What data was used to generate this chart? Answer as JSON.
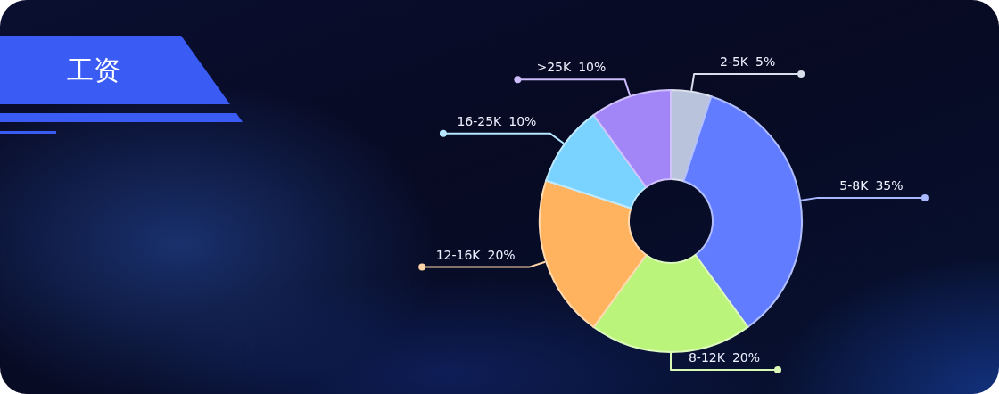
{
  "chart_data": {
    "type": "donut",
    "title": "工资",
    "categories": [
      "2-5K",
      "5-8K",
      "8-12K",
      "12-16K",
      "16-25K",
      ">25K"
    ],
    "values": [
      5,
      35,
      20,
      20,
      10,
      10
    ],
    "colors": [
      "#b9c3dc",
      "#617cfe",
      "#bbf47a",
      "#ffb35f",
      "#7ad3ff",
      "#a286f7"
    ],
    "value_labels": [
      "5%",
      "35%",
      "20%",
      "20%",
      "10%",
      "10%"
    ]
  }
}
